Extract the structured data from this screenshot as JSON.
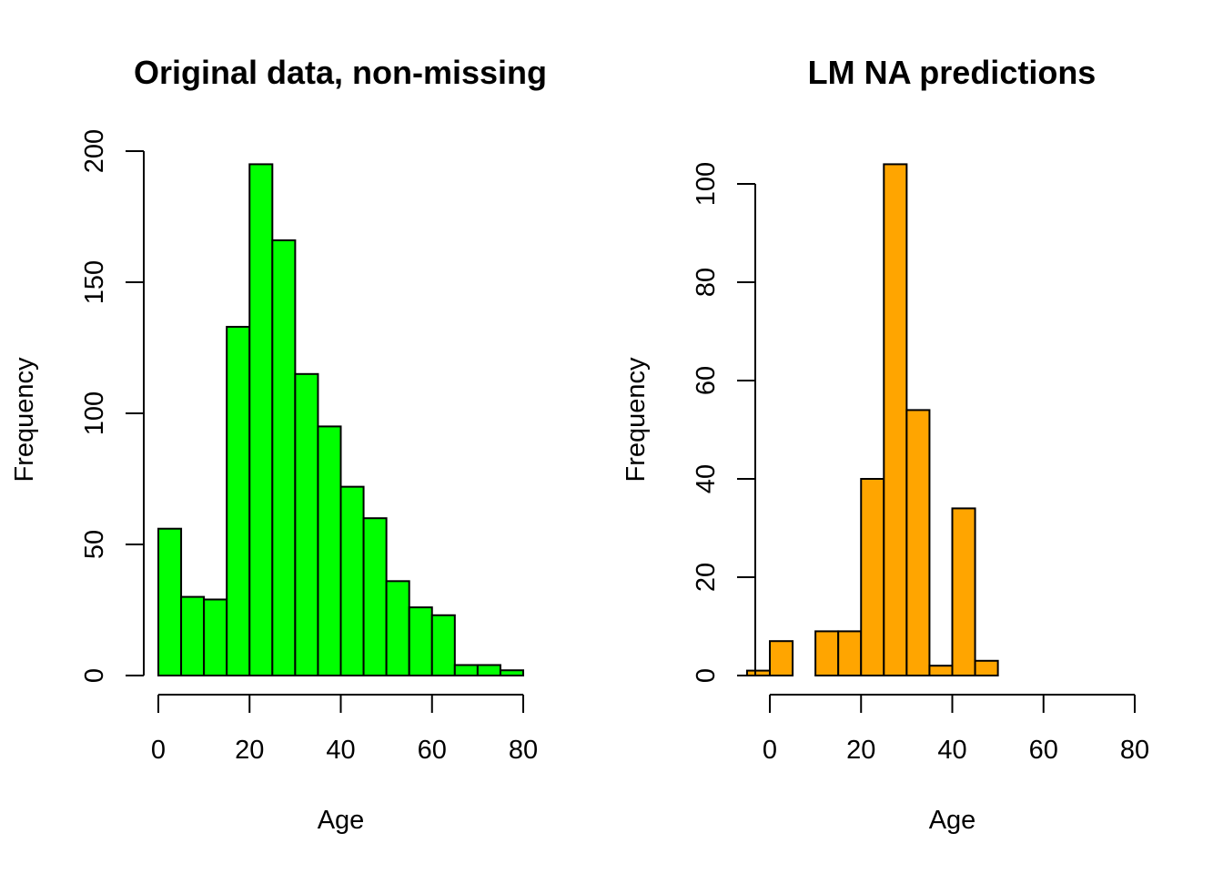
{
  "chart_data": [
    {
      "type": "bar",
      "title": "Original data, non-missing",
      "xlabel": "Age",
      "ylabel": "Frequency",
      "color": "#00ff00",
      "xlim": [
        0,
        80
      ],
      "ylim": [
        0,
        200
      ],
      "xticks": [
        0,
        20,
        40,
        60,
        80
      ],
      "yticks": [
        0,
        50,
        100,
        150,
        200
      ],
      "bins": [
        {
          "start": 0,
          "end": 5,
          "count": 56
        },
        {
          "start": 5,
          "end": 10,
          "count": 30
        },
        {
          "start": 10,
          "end": 15,
          "count": 29
        },
        {
          "start": 15,
          "end": 20,
          "count": 133
        },
        {
          "start": 20,
          "end": 25,
          "count": 195
        },
        {
          "start": 25,
          "end": 30,
          "count": 166
        },
        {
          "start": 30,
          "end": 35,
          "count": 115
        },
        {
          "start": 35,
          "end": 40,
          "count": 95
        },
        {
          "start": 40,
          "end": 45,
          "count": 72
        },
        {
          "start": 45,
          "end": 50,
          "count": 60
        },
        {
          "start": 50,
          "end": 55,
          "count": 36
        },
        {
          "start": 55,
          "end": 60,
          "count": 26
        },
        {
          "start": 60,
          "end": 65,
          "count": 23
        },
        {
          "start": 65,
          "end": 70,
          "count": 4
        },
        {
          "start": 70,
          "end": 75,
          "count": 4
        },
        {
          "start": 75,
          "end": 80,
          "count": 2
        }
      ]
    },
    {
      "type": "bar",
      "title": "LM NA predictions",
      "xlabel": "Age",
      "ylabel": "Frequency",
      "color": "#ffa500",
      "xlim": [
        0,
        80
      ],
      "ylim": [
        0,
        100
      ],
      "xticks": [
        0,
        20,
        40,
        60,
        80
      ],
      "yticks": [
        0,
        20,
        40,
        60,
        80,
        100
      ],
      "bins": [
        {
          "start": -5,
          "end": 0,
          "count": 1
        },
        {
          "start": 0,
          "end": 5,
          "count": 7
        },
        {
          "start": 5,
          "end": 10,
          "count": 0
        },
        {
          "start": 10,
          "end": 15,
          "count": 9
        },
        {
          "start": 15,
          "end": 20,
          "count": 9
        },
        {
          "start": 20,
          "end": 25,
          "count": 40
        },
        {
          "start": 25,
          "end": 30,
          "count": 104
        },
        {
          "start": 30,
          "end": 35,
          "count": 54
        },
        {
          "start": 35,
          "end": 40,
          "count": 2
        },
        {
          "start": 40,
          "end": 45,
          "count": 34
        },
        {
          "start": 45,
          "end": 50,
          "count": 3
        }
      ]
    }
  ]
}
